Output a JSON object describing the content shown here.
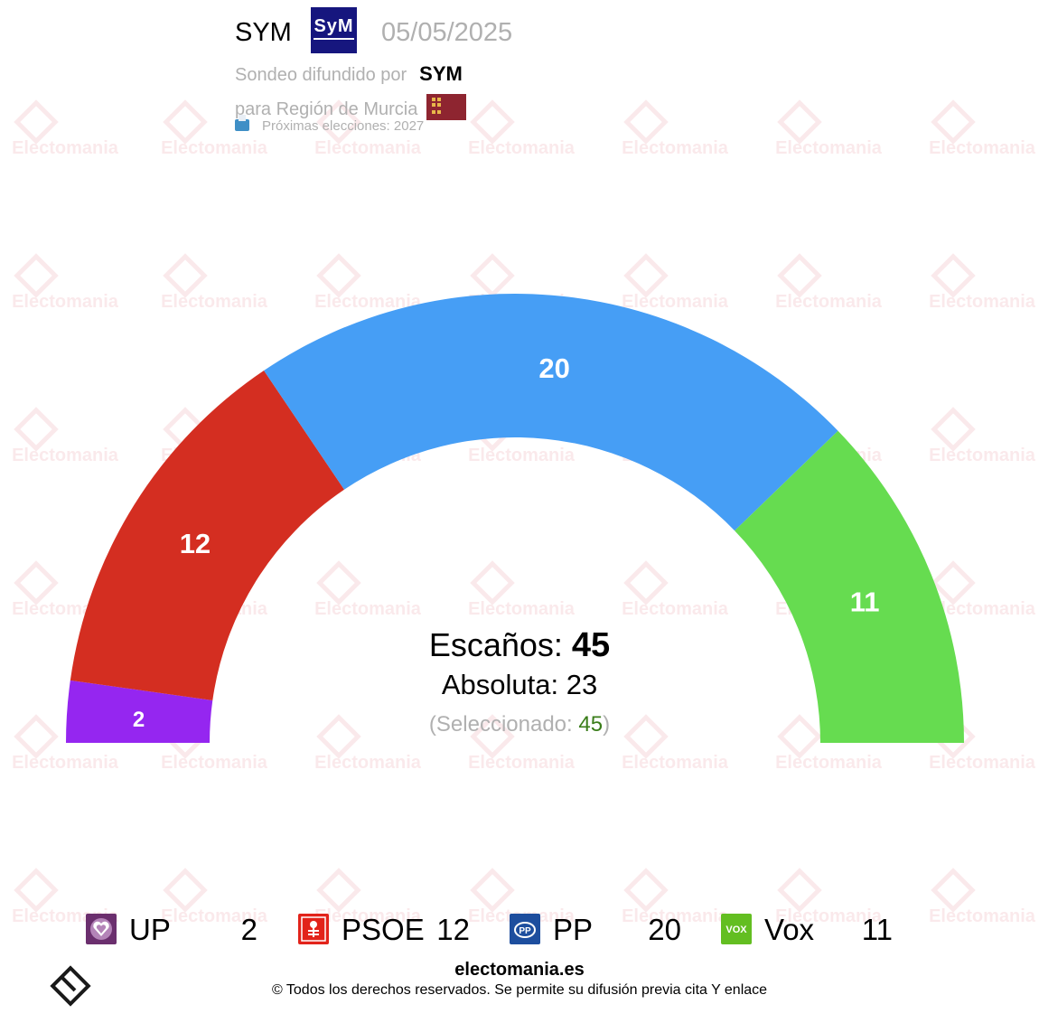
{
  "header": {
    "pollster": "SYM",
    "pollster_logo_text": "SyM",
    "date": "05/05/2025",
    "diffused_prefix": "Sondeo difundido por",
    "diffused_by": "SYM",
    "region": "para Región de Murcia",
    "next_elections": "Próximas elecciones: 2027"
  },
  "watermark_text": "Electomania",
  "chart_data": {
    "type": "pie",
    "subtype": "hemicycle",
    "total_seats": 45,
    "series": [
      {
        "name": "UP",
        "value": 2,
        "color": "#9526f0",
        "logo": "up-heart-icon"
      },
      {
        "name": "PSOE",
        "value": 12,
        "color": "#d42e21",
        "logo": "psoe-rose-icon"
      },
      {
        "name": "PP",
        "value": 20,
        "color": "#469ef5",
        "logo": "pp-gull-icon"
      },
      {
        "name": "Vox",
        "value": 11,
        "color": "#66dc50",
        "logo": "vox-icon"
      }
    ]
  },
  "center": {
    "seats_label": "Escaños:",
    "seats_value": "45",
    "absolute_label": "Absoluta:",
    "absolute_value": "23",
    "selected_open": "(Seleccionado:",
    "selected_value": "45",
    "selected_close": ")"
  },
  "legend": [
    {
      "name": "UP",
      "value": "2"
    },
    {
      "name": "PSOE",
      "value": "12"
    },
    {
      "name": "PP",
      "value": "20"
    },
    {
      "name": "Vox",
      "value": "11"
    }
  ],
  "footer": {
    "site": "electomania.es",
    "copyright": "© Todos los derechos reservados. Se permite su difusión previa cita Y enlace"
  }
}
